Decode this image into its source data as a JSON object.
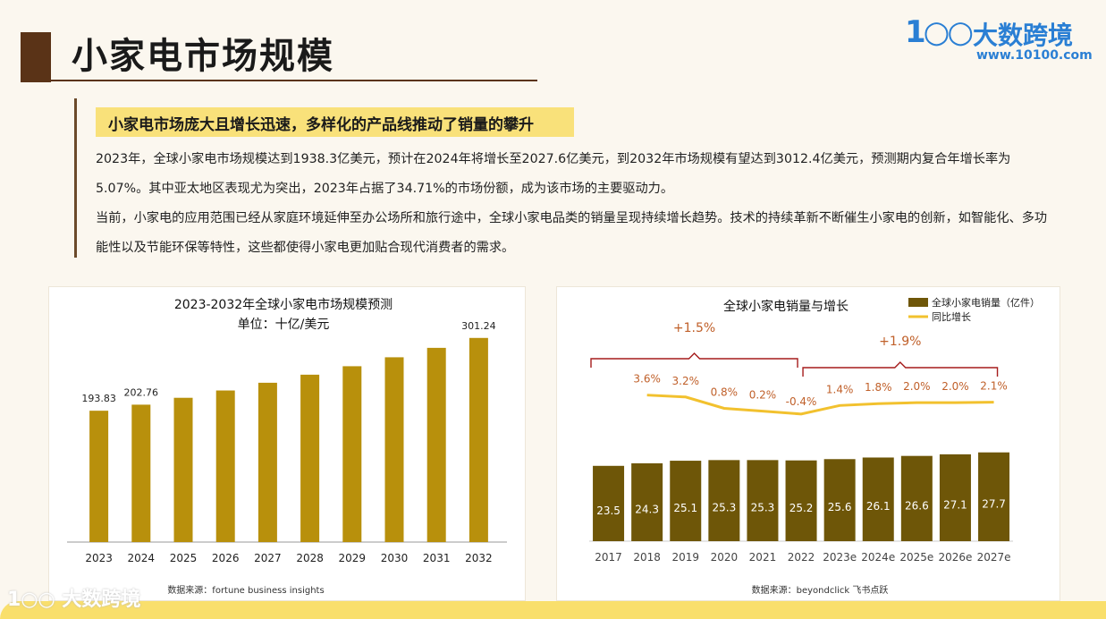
{
  "page": {
    "title": "小家电市场规模",
    "highlight": "小家电市场庞大且增长迅速，多样化的产品线推动了销量的攀升",
    "paragraph1": "2023年，全球小家电市场规模达到1938.3亿美元，预计在2024年将增长至2027.6亿美元，到2032年市场规模有望达到3012.4亿美元，预测期内复合年增长率为5.07%。其中亚太地区表现尤为突出，2023年占据了34.71%的市场份额，成为该市场的主要驱动力。",
    "paragraph2": "当前，小家电的应用范围已经从家庭环境延伸至办公场所和旅行途中，全球小家电品类的销量呈现持续增长趋势。技术的持续革新不断催生小家电的创新，如智能化、多功能性以及节能环保等特性，这些都使得小家电更加贴合现代消费者的需求。",
    "logo_mark": "1○○",
    "logo_name": "大数跨境",
    "logo_url": "www.10100.com",
    "watermark": "1○○ 大数跨境"
  },
  "chart_data": [
    {
      "type": "bar",
      "title": "2023-2032年全球小家电市场规模预测",
      "subtitle": "单位：十亿/美元",
      "categories": [
        "2023",
        "2024",
        "2025",
        "2026",
        "2027",
        "2028",
        "2029",
        "2030",
        "2031",
        "2032"
      ],
      "values": [
        193.83,
        202.76,
        212.9,
        223.7,
        235.1,
        247.0,
        259.5,
        272.7,
        286.6,
        301.24
      ],
      "labels": [
        "193.83",
        "202.76",
        "",
        "",
        "",
        "",
        "",
        "",
        "",
        "301.24"
      ],
      "ylim": [
        0,
        330
      ],
      "color": "#b8900c",
      "source": "数据来源：fortune business insights"
    },
    {
      "type": "bar+line",
      "title": "全球小家电销量与增长",
      "categories": [
        "2017",
        "2018",
        "2019",
        "2020",
        "2021",
        "2022",
        "2023e",
        "2024e",
        "2025e",
        "2026e",
        "2027e"
      ],
      "series": [
        {
          "name": "全球小家电销量（亿件）",
          "type": "bar",
          "values": [
            23.5,
            24.3,
            25.1,
            25.3,
            25.3,
            25.2,
            25.6,
            26.1,
            26.6,
            27.1,
            27.7
          ],
          "color": "#6e5608"
        },
        {
          "name": "同比增长",
          "type": "line",
          "values": [
            null,
            3.6,
            3.2,
            0.8,
            0.2,
            -0.4,
            1.4,
            1.8,
            2.0,
            2.0,
            2.1
          ],
          "labels": [
            "",
            "3.6%",
            "3.2%",
            "0.8%",
            "0.2%",
            "-0.4%",
            "1.4%",
            "1.8%",
            "2.0%",
            "2.0%",
            "2.1%"
          ],
          "color": "#f2c12e"
        }
      ],
      "bar_ylim": [
        0,
        60
      ],
      "line_ylim": [
        -8,
        6
      ],
      "annotations": [
        {
          "text": "+1.5%",
          "from": "2017",
          "to": "2022"
        },
        {
          "text": "+1.9%",
          "from": "2022",
          "to": "2027e"
        }
      ],
      "source": "数据来源：beyondclick 飞书点跃"
    }
  ]
}
